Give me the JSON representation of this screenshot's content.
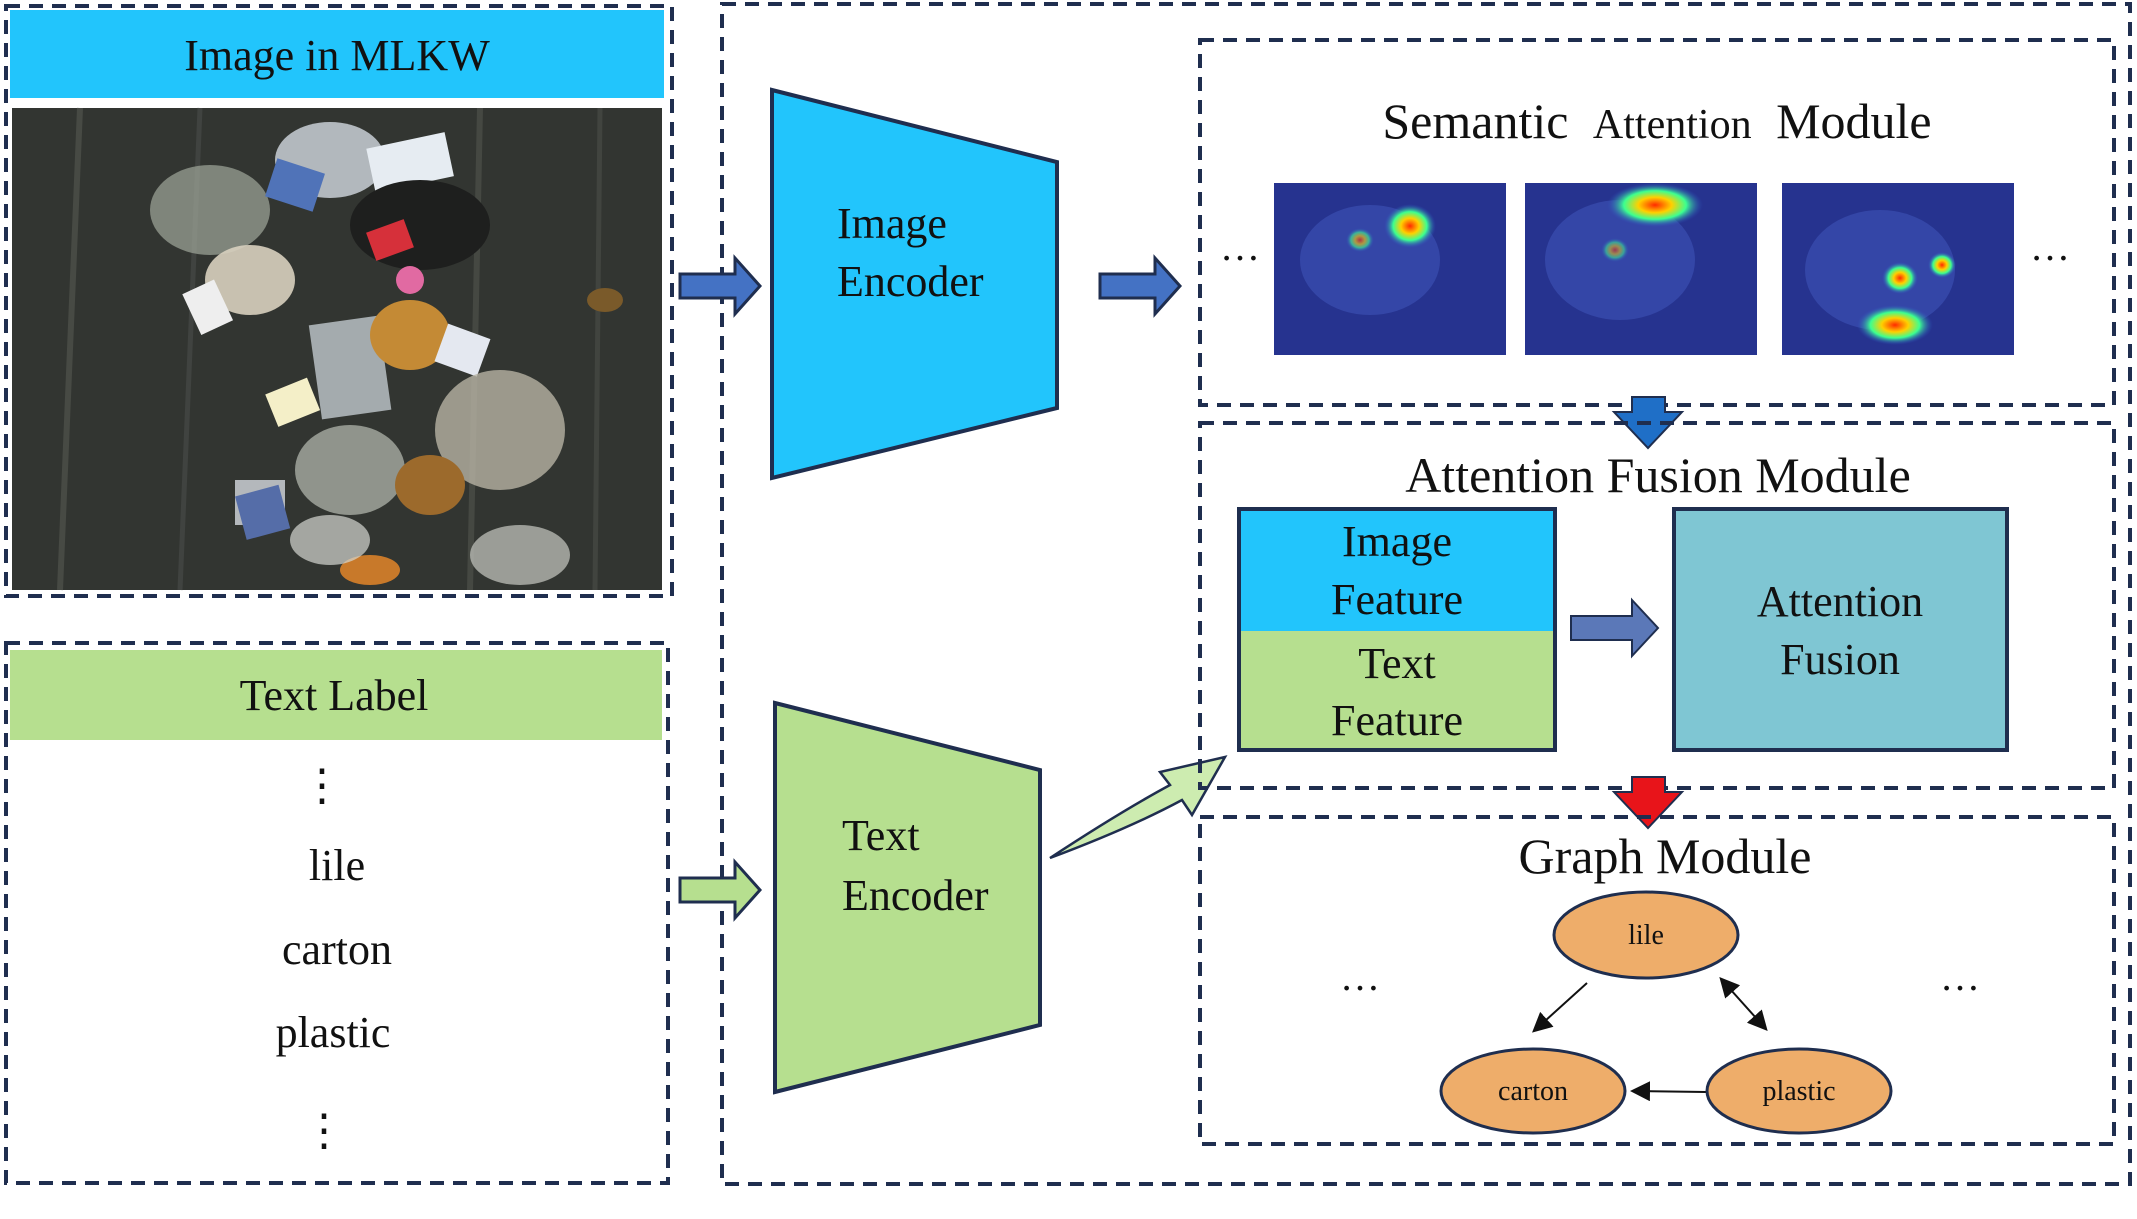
{
  "image_panel": {
    "header": "Image in MLKW"
  },
  "text_panel": {
    "header": "Text Label",
    "ellipsis_top": "⋮",
    "labels": [
      "lile",
      "carton",
      "plastic"
    ],
    "ellipsis_bottom": "⋮"
  },
  "image_encoder": {
    "line1": "Image",
    "line2": "Encoder"
  },
  "text_encoder": {
    "line1": "Text",
    "line2": "Encoder"
  },
  "semantic_attention": {
    "title_a": "Semantic",
    "title_b": "Attention",
    "title_c": "Module",
    "ellipsis_left": "…",
    "ellipsis_right": "…"
  },
  "attention_fusion": {
    "title": "Attention Fusion Module",
    "image_feature": {
      "line1": "Image",
      "line2": "Feature"
    },
    "text_feature": {
      "line1": "Text",
      "line2": "Feature"
    },
    "fusion": {
      "line1": "Attention",
      "line2": "Fusion"
    }
  },
  "graph_module": {
    "title": "Graph Module",
    "nodes": [
      "lile",
      "carton",
      "plastic"
    ],
    "ellipsis_left": "…",
    "ellipsis_right": "…"
  },
  "colors": {
    "image_blue": "#22c5fc",
    "text_green": "#b6df8f",
    "fusion_teal": "#7fc6d3",
    "node_orange": "#eead6a",
    "border_navy": "#1f2e4f",
    "arrow_blue": "#4472c4",
    "arrow_down_blue": "#1f6fc7",
    "arrow_red": "#e8141a"
  }
}
